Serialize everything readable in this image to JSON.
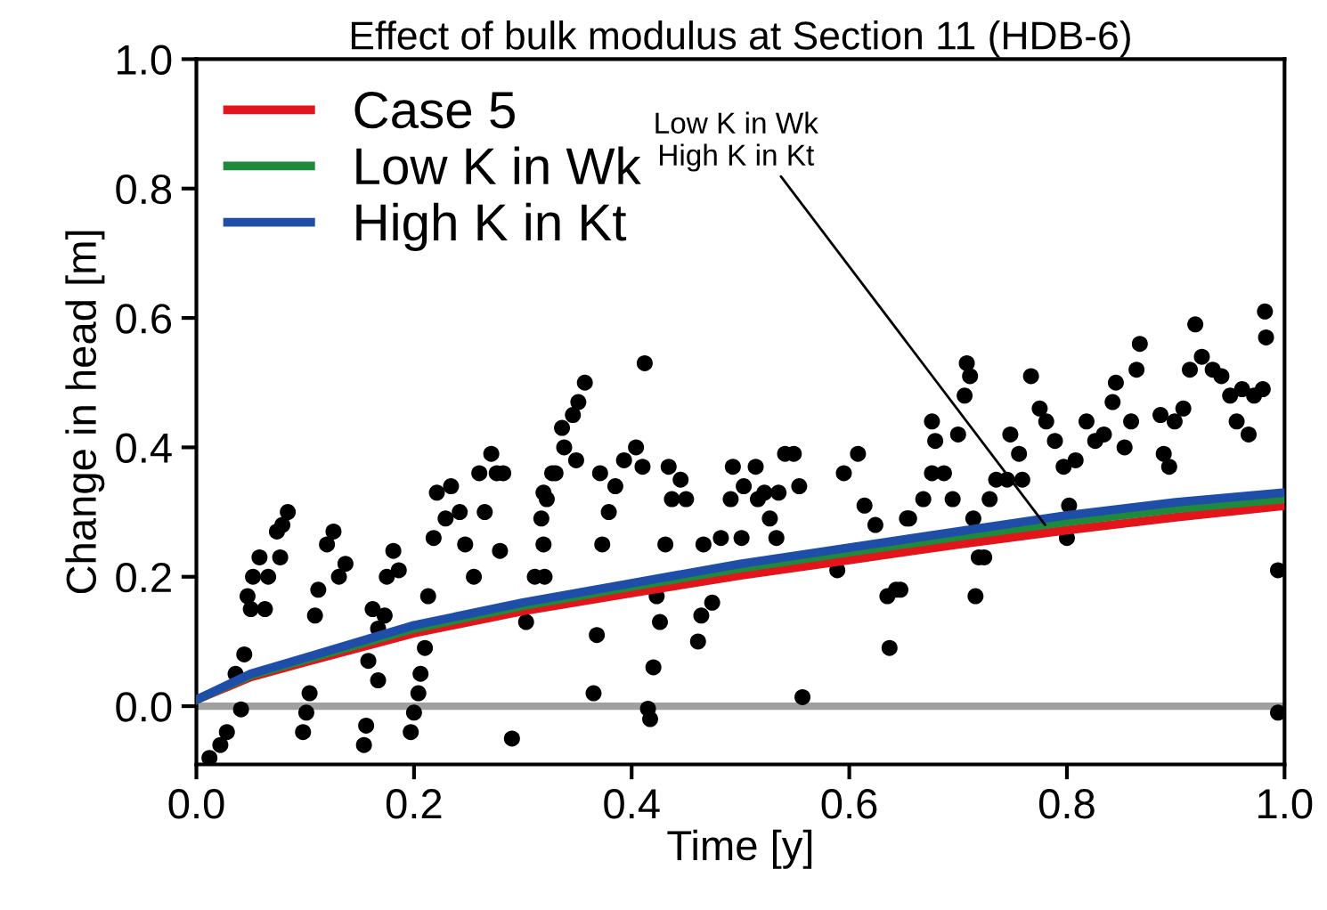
{
  "chart_data": {
    "type": "line",
    "title": "Effect of bulk modulus at Section 11 (HDB-6)",
    "xlabel": "Time [y]",
    "ylabel": "Change in head [m]",
    "xlim": [
      0,
      1
    ],
    "ylim": [
      -0.09,
      1.0
    ],
    "xticks": [
      {
        "value": 0,
        "label": "0.0"
      },
      0.2,
      0.4,
      0.6,
      0.8,
      {
        "value": 1,
        "label": "1.0"
      }
    ],
    "yticks": [
      {
        "value": 0,
        "label": "0.0"
      },
      0.2,
      0.4,
      0.6,
      0.8,
      {
        "value": 1,
        "label": "1.0"
      }
    ],
    "legend": "top left",
    "grid": false,
    "ref_lines": [
      {
        "axis": "y",
        "value": 0,
        "label": null,
        "color": "#a0a0a0"
      }
    ],
    "annotations": [
      {
        "text": "Low K in Wk\nHigh K in Kt",
        "x": 0.78,
        "y": 0.28
      }
    ],
    "series": [
      {
        "type": "scatter",
        "color": "#000000",
        "marker": "circle",
        "x": [
          0.012,
          0.022,
          0.028,
          0.036,
          0.044,
          0.041,
          0.047,
          0.05,
          0.052,
          0.063,
          0.066,
          0.058,
          0.077,
          0.074,
          0.079,
          0.084,
          0.098,
          0.104,
          0.101,
          0.109,
          0.112,
          0.12,
          0.126,
          0.131,
          0.137,
          0.158,
          0.156,
          0.154,
          0.167,
          0.167,
          0.173,
          0.162,
          0.175,
          0.181,
          0.186,
          0.197,
          0.2,
          0.204,
          0.206,
          0.21,
          0.213,
          0.218,
          0.221,
          0.229,
          0.234,
          0.242,
          0.247,
          0.255,
          0.26,
          0.265,
          0.271,
          0.276,
          0.279,
          0.282,
          0.29,
          0.303,
          0.311,
          0.317,
          0.319,
          0.327,
          0.32,
          0.319,
          0.322,
          0.33,
          0.338,
          0.336,
          0.346,
          0.351,
          0.357,
          0.349,
          0.365,
          0.368,
          0.373,
          0.371,
          0.379,
          0.385,
          0.393,
          0.404,
          0.41,
          0.412,
          0.415,
          0.417,
          0.42,
          0.423,
          0.426,
          0.431,
          0.434,
          0.437,
          0.445,
          0.45,
          0.461,
          0.464,
          0.474,
          0.466,
          0.482,
          0.491,
          0.493,
          0.501,
          0.503,
          0.514,
          0.516,
          0.522,
          0.527,
          0.533,
          0.535,
          0.541,
          0.549,
          0.554,
          0.557,
          0.589,
          0.595,
          0.608,
          0.614,
          0.624,
          0.635,
          0.637,
          0.643,
          0.653,
          0.647,
          0.655,
          0.668,
          0.676,
          0.679,
          0.676,
          0.687,
          0.695,
          0.7,
          0.706,
          0.708,
          0.711,
          0.714,
          0.719,
          0.716,
          0.724,
          0.729,
          0.735,
          0.745,
          0.748,
          0.759,
          0.756,
          0.767,
          0.775,
          0.781,
          0.789,
          0.797,
          0.802,
          0.8,
          0.808,
          0.818,
          0.826,
          0.834,
          0.842,
          0.845,
          0.853,
          0.859,
          0.864,
          0.867,
          0.889,
          0.894,
          0.886,
          0.899,
          0.907,
          0.913,
          0.918,
          0.924,
          0.934,
          0.942,
          0.95,
          0.956,
          0.961,
          0.967,
          0.972,
          0.98,
          0.982,
          0.983,
          0.994,
          0.994
        ],
        "values": [
          -0.08,
          -0.06,
          -0.04,
          0.05,
          0.08,
          -0.005,
          0.17,
          0.15,
          0.2,
          0.15,
          0.2,
          0.23,
          0.23,
          0.27,
          0.28,
          0.3,
          -0.04,
          0.02,
          -0.01,
          0.14,
          0.18,
          0.25,
          0.27,
          0.2,
          0.22,
          0.07,
          -0.03,
          -0.06,
          0.04,
          0.12,
          0.14,
          0.15,
          0.2,
          0.24,
          0.21,
          -0.04,
          -0.01,
          0.02,
          0.05,
          0.09,
          0.17,
          0.26,
          0.33,
          0.29,
          0.34,
          0.3,
          0.25,
          0.2,
          0.36,
          0.3,
          0.39,
          0.36,
          0.24,
          0.36,
          -0.05,
          0.13,
          0.2,
          0.29,
          0.33,
          0.36,
          0.2,
          0.25,
          0.32,
          0.36,
          0.4,
          0.43,
          0.45,
          0.47,
          0.5,
          0.38,
          0.02,
          0.11,
          0.25,
          0.36,
          0.3,
          0.34,
          0.38,
          0.4,
          0.37,
          0.53,
          -0.004,
          -0.02,
          0.06,
          0.17,
          0.13,
          0.25,
          0.37,
          0.32,
          0.35,
          0.32,
          0.1,
          0.14,
          0.16,
          0.25,
          0.26,
          0.32,
          0.37,
          0.26,
          0.34,
          0.37,
          0.32,
          0.33,
          0.29,
          0.26,
          0.33,
          0.39,
          0.39,
          0.34,
          0.014,
          0.21,
          0.36,
          0.39,
          0.31,
          0.28,
          0.17,
          0.09,
          0.18,
          0.29,
          0.18,
          0.29,
          0.32,
          0.36,
          0.41,
          0.44,
          0.36,
          0.32,
          0.42,
          0.48,
          0.53,
          0.51,
          0.29,
          0.23,
          0.17,
          0.23,
          0.32,
          0.35,
          0.35,
          0.42,
          0.35,
          0.39,
          0.51,
          0.46,
          0.44,
          0.41,
          0.37,
          0.31,
          0.26,
          0.38,
          0.44,
          0.41,
          0.42,
          0.47,
          0.5,
          0.4,
          0.44,
          0.52,
          0.56,
          0.39,
          0.37,
          0.45,
          0.44,
          0.46,
          0.52,
          0.59,
          0.54,
          0.52,
          0.51,
          0.48,
          0.44,
          0.49,
          0.42,
          0.48,
          0.49,
          0.61,
          0.57,
          0.21,
          -0.01
        ]
      },
      {
        "name": "Case 5",
        "color": "#e3151b",
        "x": [
          0,
          0.05,
          0.1,
          0.2,
          0.3,
          0.4,
          0.5,
          0.6,
          0.7,
          0.8,
          0.9,
          1.0
        ],
        "values": [
          0.01,
          0.045,
          0.068,
          0.113,
          0.147,
          0.175,
          0.202,
          0.226,
          0.25,
          0.272,
          0.292,
          0.31
        ]
      },
      {
        "name": "Low K in Wk",
        "color": "#1e8a3c",
        "x": [
          0,
          0.05,
          0.1,
          0.2,
          0.3,
          0.4,
          0.5,
          0.6,
          0.7,
          0.8,
          0.9,
          1.0
        ],
        "values": [
          0.01,
          0.048,
          0.072,
          0.12,
          0.155,
          0.185,
          0.213,
          0.238,
          0.262,
          0.285,
          0.305,
          0.32
        ]
      },
      {
        "name": "High K in Kt",
        "color": "#1f4ea8",
        "x": [
          0,
          0.05,
          0.1,
          0.2,
          0.3,
          0.4,
          0.5,
          0.6,
          0.7,
          0.8,
          0.9,
          1.0
        ],
        "values": [
          0.01,
          0.05,
          0.075,
          0.125,
          0.16,
          0.19,
          0.22,
          0.245,
          0.27,
          0.295,
          0.315,
          0.33
        ]
      }
    ]
  }
}
